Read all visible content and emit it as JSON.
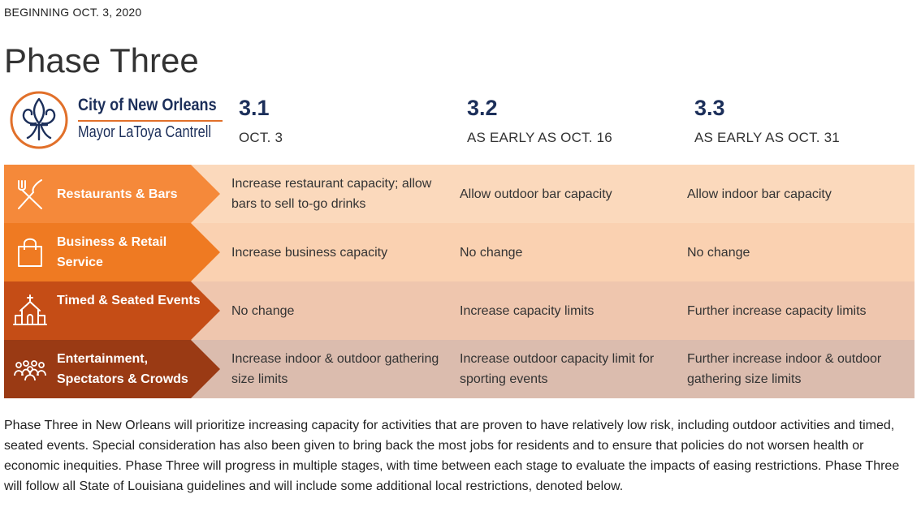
{
  "header": {
    "eyebrow": "BEGINNING OCT. 3, 2020",
    "title": "Phase Three"
  },
  "logo": {
    "name": "City of New Orleans",
    "mayor": "Mayor LaToya Cantrell",
    "icon": "fleur-de-lis-icon"
  },
  "phases": [
    {
      "num": "3.1",
      "date": "OCT. 3"
    },
    {
      "num": "3.2",
      "date": "AS EARLY AS OCT. 16"
    },
    {
      "num": "3.3",
      "date": "AS EARLY AS OCT. 31"
    }
  ],
  "rows": [
    {
      "label": "Restaurants & Bars",
      "icon": "fork-knife-icon",
      "label_color": "#f5893a",
      "bg_color": "#fbd9bc",
      "cells": [
        "Increase restaurant capacity; allow bars to sell to-go drinks",
        "Allow outdoor bar capacity",
        "Allow indoor bar capacity"
      ]
    },
    {
      "label": "Business & Retail Service",
      "icon": "shopping-bag-icon",
      "label_color": "#ef7a22",
      "bg_color": "#fad1b1",
      "cells": [
        "Increase business capacity",
        "No change",
        "No change"
      ]
    },
    {
      "label": "Timed & Seated Events",
      "icon": "chapel-icon",
      "label_color": "#c54d16",
      "bg_color": "#efc6ae",
      "cells": [
        "No change",
        "Increase capacity limits",
        "Further increase capacity limits"
      ]
    },
    {
      "label": "Entertainment, Spectators & Crowds",
      "icon": "crowd-icon",
      "label_color": "#9a3a14",
      "bg_color": "#dbbcae",
      "cells": [
        "Increase indoor & outdoor gathering size limits",
        "Increase outdoor capacity limit for sporting events",
        "Further increase indoor & outdoor gathering size limits"
      ]
    }
  ],
  "description": "Phase Three in New Orleans will prioritize increasing capacity for activities that are proven to have relatively low risk, including outdoor activities and timed, seated events. Special consideration has also been given to bring back the most jobs for residents and to ensure that policies do not worsen health or economic inequities. Phase Three will progress in multiple stages, with time between each stage to evaluate the impacts of easing restrictions. Phase Three will follow all State of Louisiana guidelines and will include some additional local restrictions, denoted below.",
  "colors": {
    "navy": "#1c2f5a",
    "orange": "#e1702a"
  }
}
